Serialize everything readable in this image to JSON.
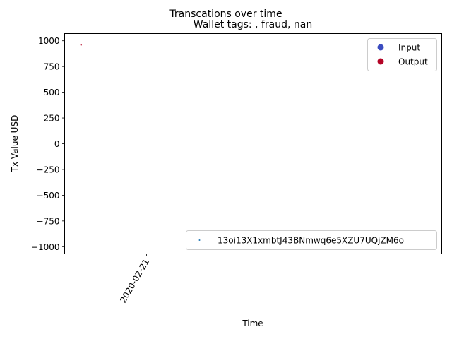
{
  "chart_data": {
    "type": "scatter",
    "suptitle": "Transcations over time",
    "title": "Wallet tags: , fraud, nan",
    "xlabel": "Time",
    "ylabel": "Tx Value USD",
    "x_ticks": [
      "2020-02-21"
    ],
    "y_ticks": [
      1000,
      750,
      500,
      250,
      0,
      -250,
      -500,
      -750,
      -1000
    ],
    "ylim": [
      -1070,
      1070
    ],
    "xlim": [
      "2020-02-16",
      "2020-03-10"
    ],
    "grid": false,
    "series": [
      {
        "name": "Input",
        "color": "#3b4cc0",
        "points": []
      },
      {
        "name": "Output",
        "color": "#b40426",
        "points": [
          {
            "x": "2020-02-17",
            "y": 960
          }
        ]
      }
    ],
    "legends": [
      {
        "placement": "upper right",
        "entries": [
          {
            "label": "Input",
            "color": "#3b4cc0",
            "marker": "circle"
          },
          {
            "label": "Output",
            "color": "#b40426",
            "marker": "circle"
          }
        ]
      },
      {
        "placement": "lower right",
        "entries": [
          {
            "label": "13oi13X1xmbtJ43BNmwq6e5XZU7UQjZM6o",
            "color": "#1f77b4",
            "marker": "dot"
          }
        ]
      }
    ]
  }
}
